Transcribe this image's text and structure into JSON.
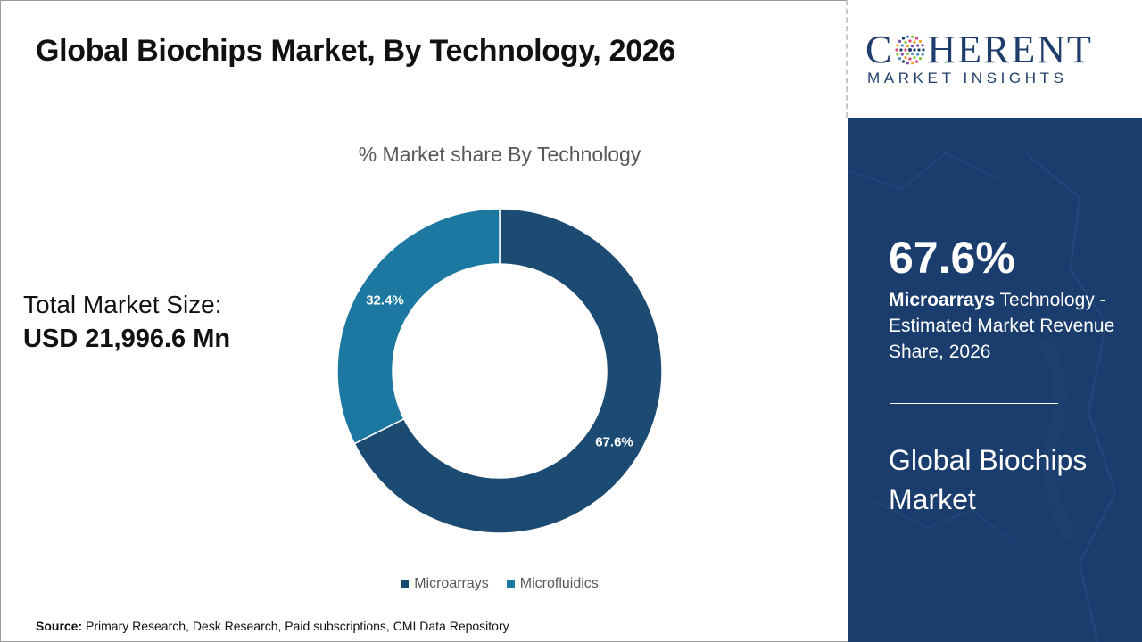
{
  "header": {
    "title": "Global Biochips Market, By Technology, 2026"
  },
  "summary": {
    "total_label": "Total Market Size:",
    "total_value": "USD 21,996.6 Mn"
  },
  "chart_data": {
    "type": "pie",
    "donut": true,
    "title": "% Market share By Technology",
    "categories": [
      "Microarrays",
      "Microfluidics"
    ],
    "values": [
      67.6,
      32.4
    ],
    "data_labels": [
      "67.6%",
      "32.4%"
    ],
    "colors": [
      "#1b4a72",
      "#1c78a0"
    ],
    "legend": "bottom"
  },
  "source": {
    "label": "Source:",
    "text": "Primary Research, Desk Research, Paid subscriptions, CMI Data Repository"
  },
  "logo": {
    "word_left": "C",
    "word_right": "HERENT",
    "subtitle": "MARKET INSIGHTS",
    "icon": "dotted-globe-icon"
  },
  "panel": {
    "highlight_value": "67.6%",
    "highlight_segment": "Microarrays",
    "highlight_desc": " Technology - Estimated Market Revenue Share, 2026",
    "market_name": "Global Biochips Market",
    "background_color": "#1b3d6e"
  }
}
